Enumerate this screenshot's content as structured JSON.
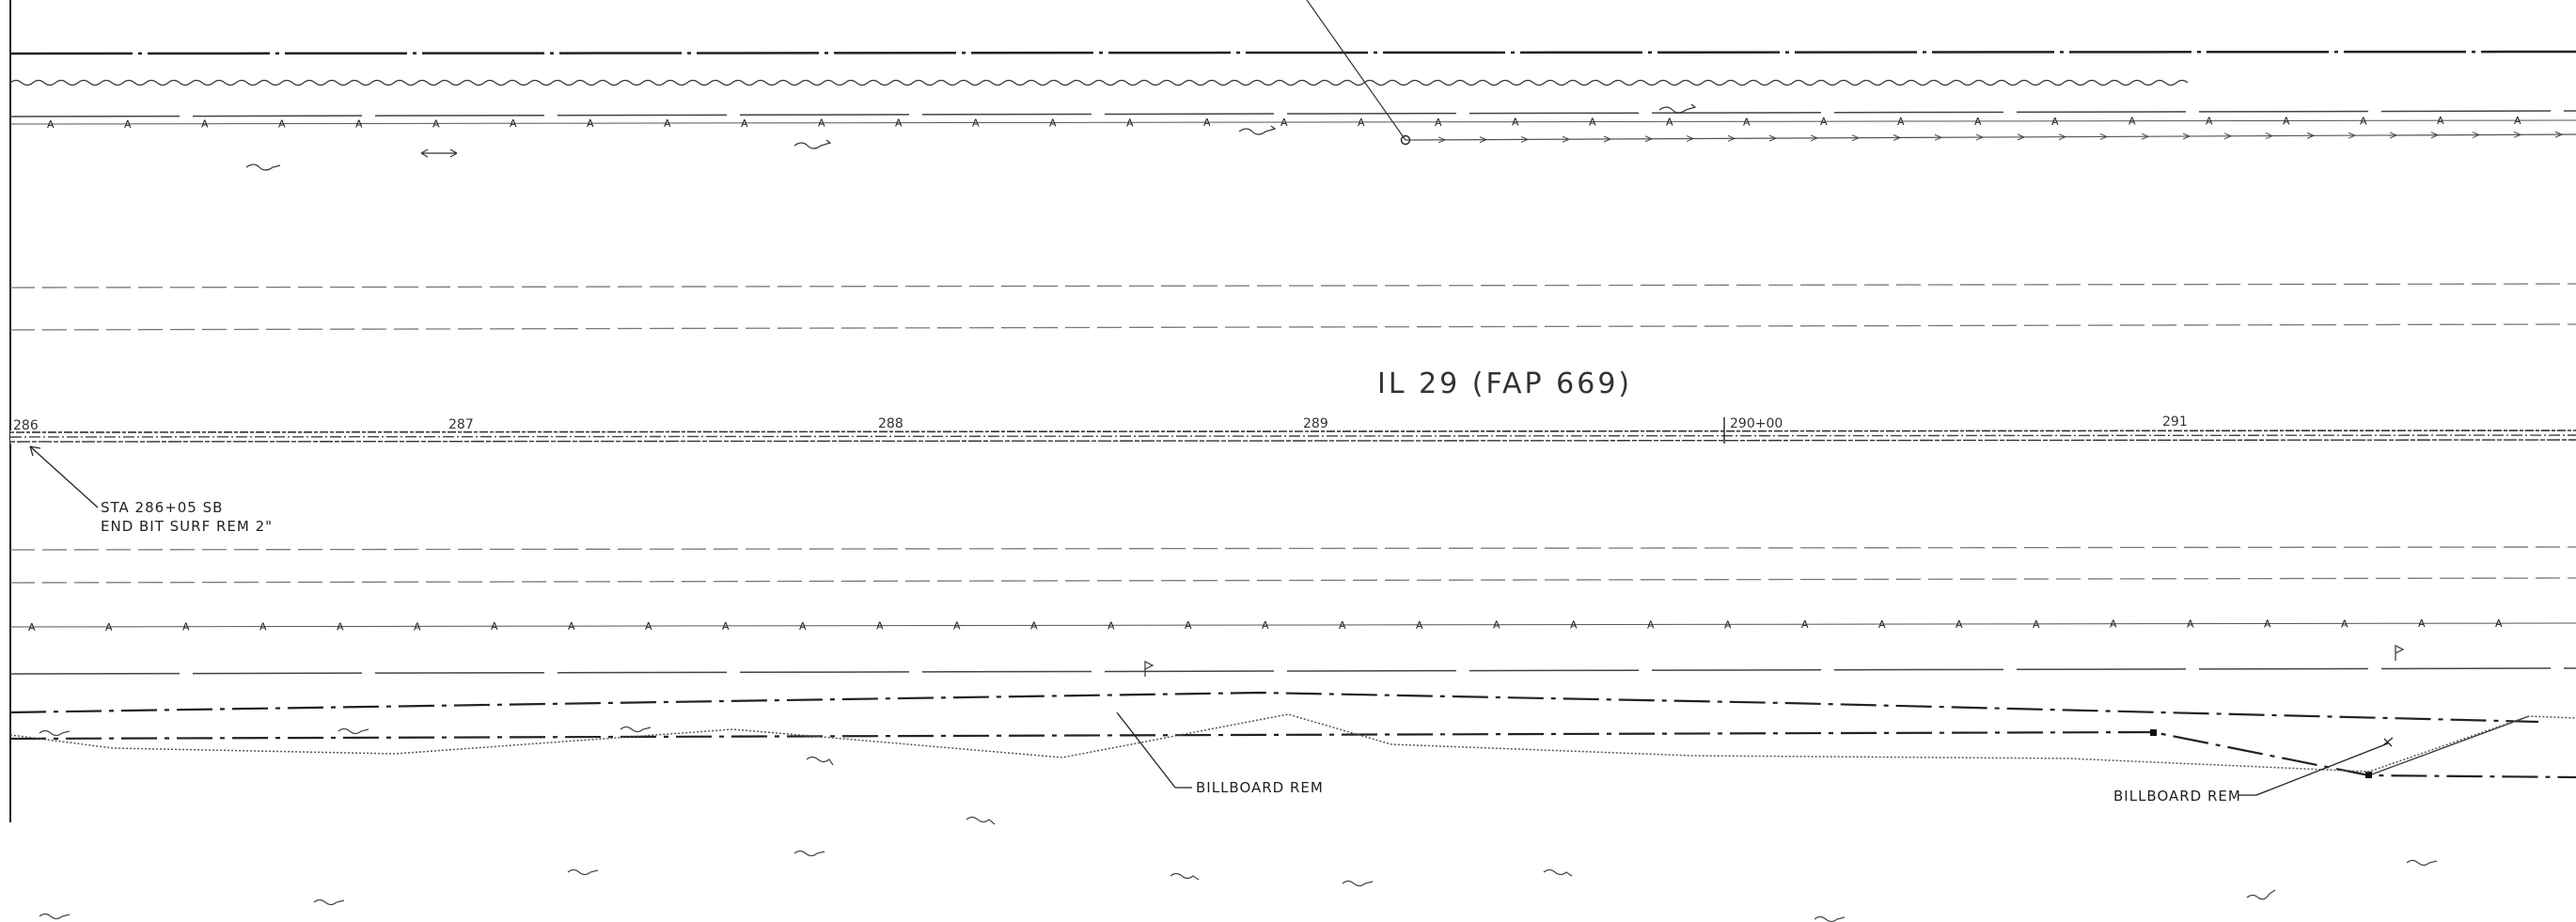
{
  "road": {
    "title": "IL 29 (FAP 669)"
  },
  "stations": [
    "286",
    "287",
    "288",
    "289",
    "290+00",
    "291"
  ],
  "callouts": {
    "sta_line1": "STA 286+05 SB",
    "sta_line2": "END BIT SURF REM 2\"",
    "billboard_1": "BILLBOARD REM",
    "billboard_2": "BILLBOARD REM"
  },
  "line_markers": {
    "fence_marker": "A"
  },
  "colors": {
    "linework": "#222222",
    "background": "#ffffff"
  }
}
